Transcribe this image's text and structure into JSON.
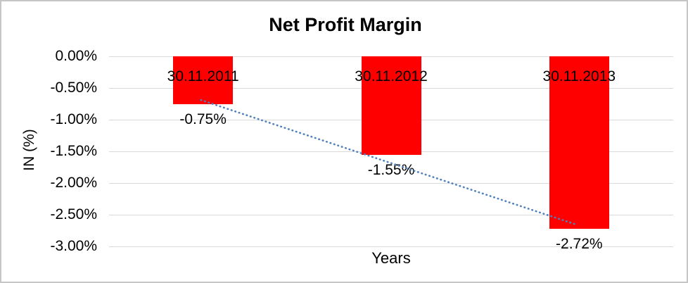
{
  "chart_data": {
    "type": "bar",
    "title": "Net Profit Margin",
    "xlabel": "Years",
    "ylabel": "IN (%)",
    "categories": [
      "30.11.2011",
      "30.11.2012",
      "30.11.2013"
    ],
    "values": [
      -0.75,
      -1.55,
      -2.72
    ],
    "value_labels": [
      "-0.75%",
      "-1.55%",
      "-2.72%"
    ],
    "y_ticks": [
      {
        "label": "0.00%",
        "value": 0
      },
      {
        "label": "-0.50%",
        "value": -0.5
      },
      {
        "label": "-1.00%",
        "value": -1.0
      },
      {
        "label": "-1.50%",
        "value": -1.5
      },
      {
        "label": "-2.00%",
        "value": -2.0
      },
      {
        "label": "-2.50%",
        "value": -2.5
      },
      {
        "label": "-3.00%",
        "value": -3.0
      }
    ],
    "ylim": [
      0,
      -3
    ],
    "grid": true,
    "legend": "none",
    "bar_color": "#ff0000",
    "gridline_color": "#d9d9d9",
    "frame_border_color": "#c6c6c6",
    "text_color": "#000000",
    "trendline": {
      "type": "linear",
      "style": "dotted",
      "color": "#4f81bd",
      "start_value": -0.69,
      "end_value": -2.66
    }
  }
}
